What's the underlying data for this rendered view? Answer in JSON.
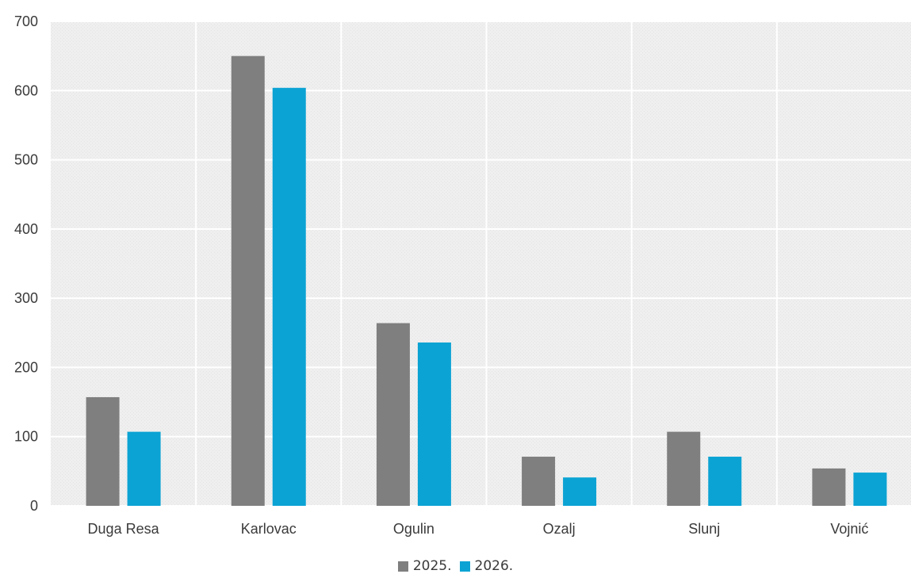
{
  "chart_data": {
    "type": "bar",
    "categories": [
      "Duga Resa",
      "Karlovac",
      "Ogulin",
      "Ozalj",
      "Slunj",
      "Vojnić"
    ],
    "series": [
      {
        "name": "2025.",
        "color": "#7f7f7f",
        "values": [
          157,
          650,
          264,
          71,
          107,
          54
        ]
      },
      {
        "name": "2026.",
        "color": "#0ba3d4",
        "values": [
          107,
          604,
          236,
          41,
          71,
          48
        ]
      }
    ],
    "ylim": [
      0,
      700
    ],
    "yticks": [
      "0",
      "100",
      "200",
      "300",
      "400",
      "500",
      "600",
      "700"
    ],
    "grid": true,
    "legend_position": "bottom-center",
    "plot_background": "#eeeeee"
  }
}
